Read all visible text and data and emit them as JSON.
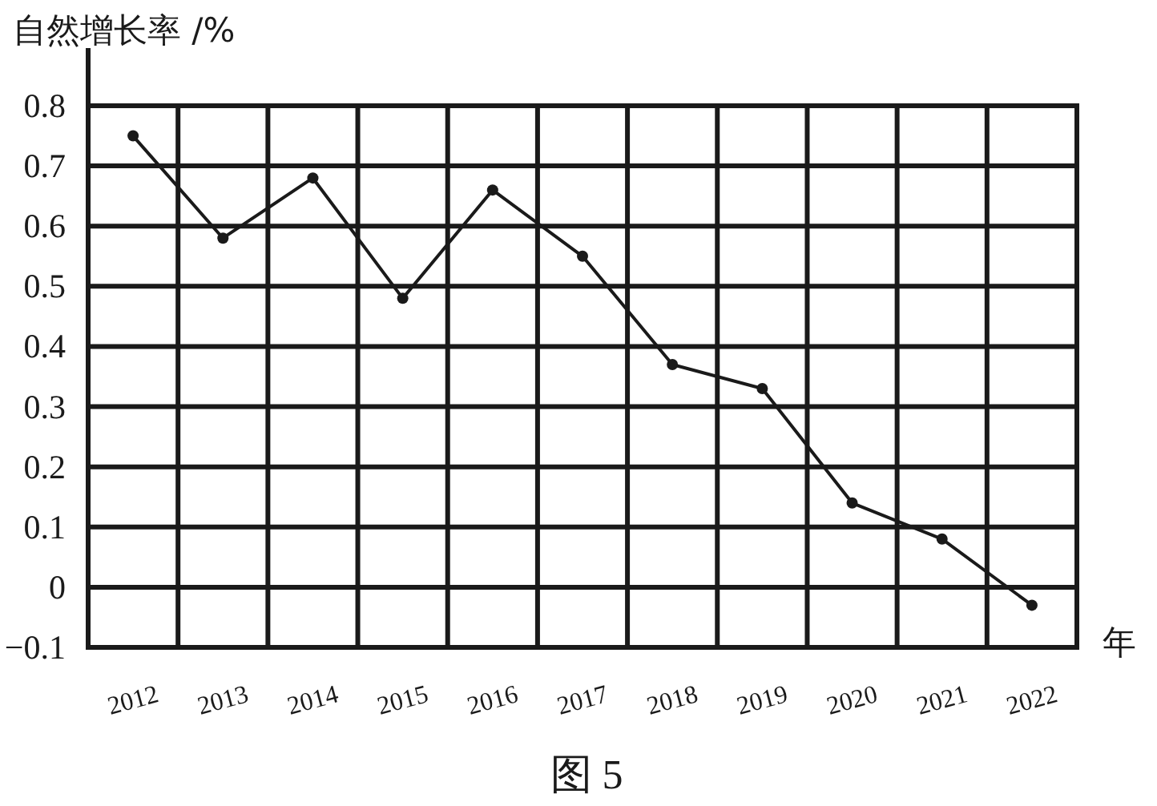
{
  "chart_data": {
    "type": "line",
    "title": "图 5",
    "xlabel": "年",
    "ylabel": "自然增长率 /%",
    "categories": [
      "2012",
      "2013",
      "2014",
      "2015",
      "2016",
      "2017",
      "2018",
      "2019",
      "2020",
      "2021",
      "2022"
    ],
    "series": [
      {
        "color": "#1a1a1a",
        "values": [
          0.75,
          0.58,
          0.68,
          0.48,
          0.66,
          0.55,
          0.37,
          0.33,
          0.14,
          0.08,
          -0.03
        ]
      }
    ],
    "ylim": [
      -0.1,
      0.8
    ],
    "yticks": [
      -0.1,
      0,
      0.1,
      0.2,
      0.3,
      0.4,
      0.5,
      0.6,
      0.7,
      0.8
    ],
    "grid": true,
    "marker": "circle",
    "line_style": "solid"
  }
}
